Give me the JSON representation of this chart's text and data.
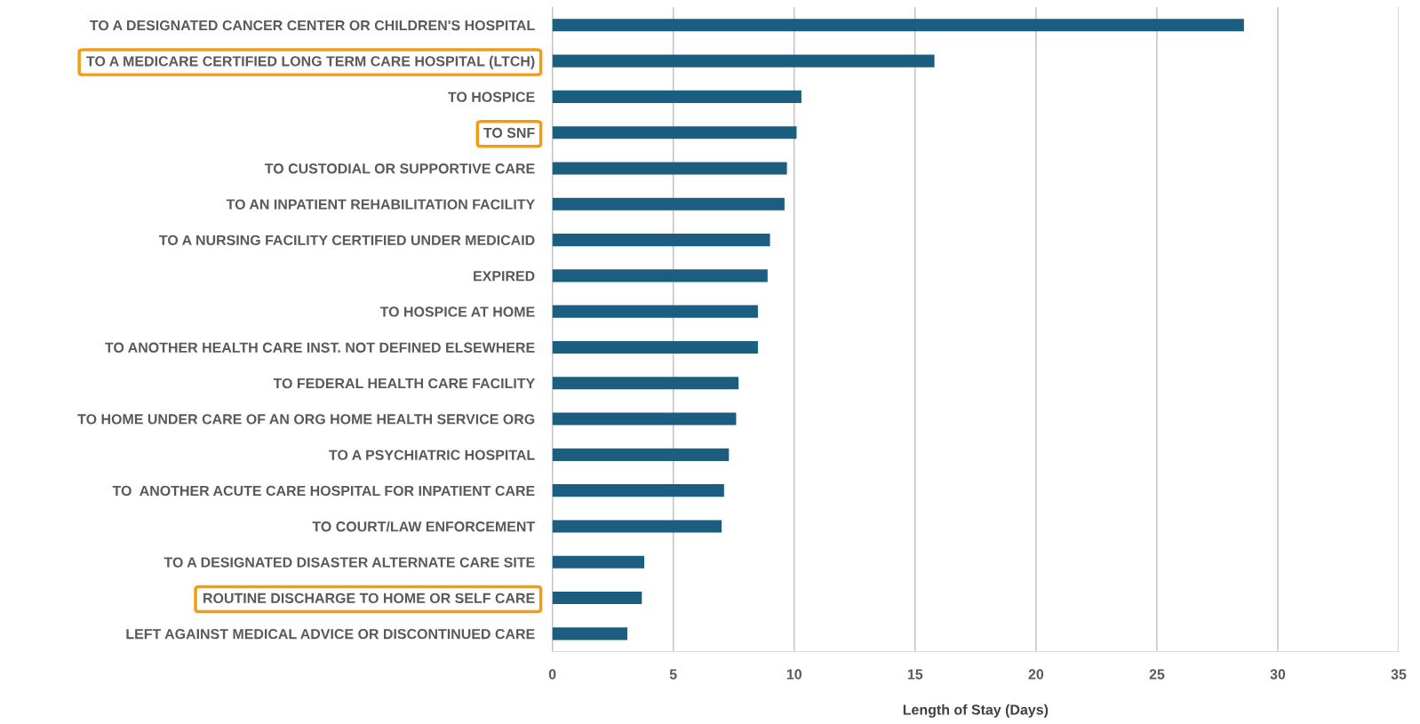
{
  "chart_data": {
    "type": "bar",
    "orientation": "horizontal",
    "xlabel": "Length of Stay (Days)",
    "categories": [
      "TO A DESIGNATED CANCER CENTER OR CHILDREN'S HOSPITAL",
      "TO A MEDICARE CERTIFIED LONG TERM CARE HOSPITAL (LTCH)",
      "TO HOSPICE",
      "TO SNF",
      "TO CUSTODIAL OR SUPPORTIVE CARE",
      "TO AN INPATIENT REHABILITATION FACILITY",
      "TO A NURSING FACILITY CERTIFIED UNDER MEDICAID",
      "EXPIRED",
      "TO HOSPICE AT HOME",
      "TO ANOTHER HEALTH CARE INST. NOT DEFINED ELSEWHERE",
      "TO FEDERAL HEALTH CARE FACILITY",
      "TO HOME UNDER CARE OF AN ORG HOME HEALTH SERVICE ORG",
      "TO A PSYCHIATRIC HOSPITAL",
      "TO  ANOTHER ACUTE CARE HOSPITAL FOR INPATIENT CARE",
      "TO COURT/LAW ENFORCEMENT",
      "TO A DESIGNATED DISASTER ALTERNATE CARE SITE",
      "ROUTINE DISCHARGE TO HOME OR SELF CARE",
      "LEFT AGAINST MEDICAL ADVICE OR DISCONTINUED CARE"
    ],
    "values": [
      28.6,
      15.8,
      10.3,
      10.1,
      9.7,
      9.6,
      9.0,
      8.9,
      8.5,
      8.5,
      7.7,
      7.6,
      7.3,
      7.1,
      7.0,
      3.8,
      3.7,
      3.1
    ],
    "color": "#1b5e80",
    "xlim": [
      0,
      35
    ],
    "xticks": [
      0,
      5,
      10,
      15,
      20,
      25,
      30,
      35
    ],
    "grid": "x"
  }
}
